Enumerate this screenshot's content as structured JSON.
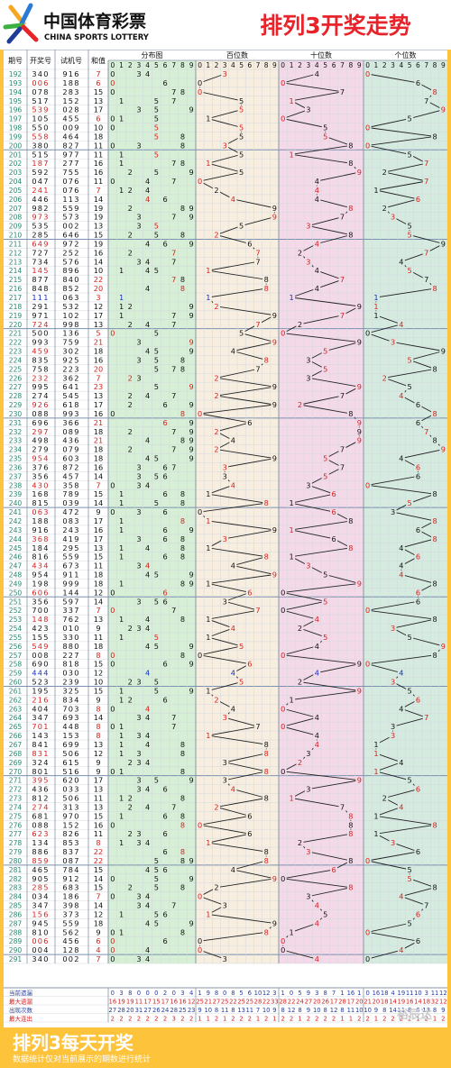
{
  "header": {
    "logo_cn": "中国体育彩票",
    "logo_en": "CHINA SPORTS LOTTERY",
    "title": "排列3开奖走势"
  },
  "columns": {
    "issue": "期号",
    "draw": "开奖号",
    "test": "试机号",
    "sum": "和值",
    "dist": "分布图",
    "hundreds": "百位数",
    "tens": "十位数",
    "units": "个位数"
  },
  "digits": [
    "0",
    "1",
    "2",
    "3",
    "4",
    "5",
    "6",
    "7",
    "8",
    "9"
  ],
  "rows": [
    [
      "192",
      "340",
      "916",
      "7"
    ],
    [
      "193",
      "006",
      "188",
      "6"
    ],
    [
      "194",
      "078",
      "283",
      "15"
    ],
    [
      "195",
      "517",
      "152",
      "13"
    ],
    [
      "196",
      "539",
      "028",
      "17"
    ],
    [
      "197",
      "105",
      "455",
      "6"
    ],
    [
      "198",
      "550",
      "009",
      "10"
    ],
    [
      "199",
      "558",
      "464",
      "18"
    ],
    [
      "200",
      "380",
      "827",
      "11"
    ],
    [
      "201",
      "515",
      "977",
      "11"
    ],
    [
      "202",
      "187",
      "277",
      "16"
    ],
    [
      "203",
      "592",
      "755",
      "16"
    ],
    [
      "204",
      "047",
      "076",
      "11"
    ],
    [
      "205",
      "241",
      "076",
      "7"
    ],
    [
      "206",
      "446",
      "113",
      "14"
    ],
    [
      "207",
      "982",
      "559",
      "19"
    ],
    [
      "208",
      "973",
      "573",
      "19"
    ],
    [
      "209",
      "535",
      "002",
      "13"
    ],
    [
      "210",
      "285",
      "646",
      "15"
    ],
    [
      "211",
      "649",
      "972",
      "19"
    ],
    [
      "212",
      "727",
      "252",
      "16"
    ],
    [
      "213",
      "734",
      "576",
      "14"
    ],
    [
      "214",
      "145",
      "896",
      "10"
    ],
    [
      "215",
      "877",
      "840",
      "22"
    ],
    [
      "216",
      "848",
      "852",
      "20"
    ],
    [
      "217",
      "111",
      "063",
      "3"
    ],
    [
      "218",
      "291",
      "532",
      "12"
    ],
    [
      "219",
      "971",
      "102",
      "17"
    ],
    [
      "220",
      "724",
      "998",
      "13"
    ],
    [
      "221",
      "500",
      "136",
      "5"
    ],
    [
      "222",
      "993",
      "759",
      "21"
    ],
    [
      "223",
      "459",
      "302",
      "18"
    ],
    [
      "224",
      "835",
      "925",
      "16"
    ],
    [
      "225",
      "758",
      "223",
      "20"
    ],
    [
      "226",
      "232",
      "362",
      "7"
    ],
    [
      "227",
      "995",
      "641",
      "23"
    ],
    [
      "228",
      "274",
      "545",
      "13"
    ],
    [
      "229",
      "926",
      "618",
      "17"
    ],
    [
      "230",
      "088",
      "993",
      "16"
    ],
    [
      "231",
      "696",
      "366",
      "21"
    ],
    [
      "232",
      "297",
      "089",
      "18"
    ],
    [
      "233",
      "498",
      "436",
      "21"
    ],
    [
      "234",
      "279",
      "079",
      "18"
    ],
    [
      "235",
      "954",
      "603",
      "18"
    ],
    [
      "236",
      "376",
      "872",
      "16"
    ],
    [
      "237",
      "356",
      "457",
      "14"
    ],
    [
      "238",
      "430",
      "358",
      "7"
    ],
    [
      "239",
      "168",
      "789",
      "15"
    ],
    [
      "240",
      "815",
      "039",
      "14"
    ],
    [
      "241",
      "063",
      "472",
      "9"
    ],
    [
      "242",
      "188",
      "083",
      "17"
    ],
    [
      "243",
      "916",
      "243",
      "16"
    ],
    [
      "244",
      "368",
      "419",
      "17"
    ],
    [
      "245",
      "184",
      "295",
      "13"
    ],
    [
      "246",
      "816",
      "559",
      "15"
    ],
    [
      "247",
      "434",
      "673",
      "11"
    ],
    [
      "248",
      "954",
      "911",
      "18"
    ],
    [
      "249",
      "198",
      "999",
      "18"
    ],
    [
      "250",
      "606",
      "144",
      "12"
    ],
    [
      "251",
      "356",
      "597",
      "14"
    ],
    [
      "252",
      "700",
      "337",
      "7"
    ],
    [
      "253",
      "148",
      "762",
      "13"
    ],
    [
      "254",
      "423",
      "010",
      "9"
    ],
    [
      "255",
      "155",
      "330",
      "11"
    ],
    [
      "256",
      "549",
      "880",
      "18"
    ],
    [
      "257",
      "008",
      "227",
      "8"
    ],
    [
      "258",
      "690",
      "818",
      "15"
    ],
    [
      "259",
      "444",
      "030",
      "12"
    ],
    [
      "260",
      "523",
      "239",
      "10"
    ],
    [
      "261",
      "195",
      "325",
      "15"
    ],
    [
      "262",
      "216",
      "834",
      "9"
    ],
    [
      "263",
      "404",
      "703",
      "8"
    ],
    [
      "264",
      "347",
      "693",
      "14"
    ],
    [
      "265",
      "701",
      "448",
      "8"
    ],
    [
      "266",
      "143",
      "153",
      "8"
    ],
    [
      "267",
      "841",
      "699",
      "13"
    ],
    [
      "268",
      "831",
      "506",
      "12"
    ],
    [
      "269",
      "324",
      "615",
      "9"
    ],
    [
      "270",
      "801",
      "516",
      "9"
    ],
    [
      "271",
      "395",
      "620",
      "17"
    ],
    [
      "272",
      "436",
      "033",
      "13"
    ],
    [
      "273",
      "812",
      "506",
      "11"
    ],
    [
      "274",
      "274",
      "313",
      "13"
    ],
    [
      "275",
      "681",
      "970",
      "15"
    ],
    [
      "276",
      "088",
      "152",
      "16"
    ],
    [
      "277",
      "623",
      "826",
      "11"
    ],
    [
      "278",
      "134",
      "853",
      "8"
    ],
    [
      "279",
      "886",
      "837",
      "22"
    ],
    [
      "280",
      "859",
      "087",
      "22"
    ],
    [
      "281",
      "465",
      "784",
      "15"
    ],
    [
      "282",
      "905",
      "912",
      "14"
    ],
    [
      "283",
      "285",
      "683",
      "15"
    ],
    [
      "284",
      "034",
      "186",
      "7"
    ],
    [
      "285",
      "347",
      "398",
      "14"
    ],
    [
      "286",
      "156",
      "373",
      "12"
    ],
    [
      "287",
      "945",
      "559",
      "18"
    ],
    [
      "288",
      "810",
      "562",
      "9"
    ],
    [
      "289",
      "006",
      "456",
      "6"
    ],
    [
      "290",
      "004",
      "128",
      "4"
    ],
    [
      "291",
      "340",
      "002",
      "7"
    ]
  ],
  "stats": {
    "labels": [
      "当前遗漏",
      "最大遗漏",
      "出现次数",
      "最大连出"
    ],
    "dist": [
      [
        "0",
        "3",
        "8",
        "0",
        "0",
        "0",
        "2",
        "0",
        "3",
        "4"
      ],
      [
        "16",
        "19",
        "19",
        "11",
        "17",
        "15",
        "17",
        "16",
        "16",
        "12"
      ],
      [
        "27",
        "28",
        "20",
        "31",
        "27",
        "26",
        "24",
        "28",
        "25",
        "23"
      ],
      [
        "2",
        "2",
        "2",
        "2",
        "2",
        "2",
        "2",
        "3",
        "2",
        "2"
      ]
    ],
    "hundreds": [
      [
        "1",
        "9",
        "8",
        "0",
        "8",
        "5",
        "6",
        "10",
        "12",
        "3"
      ],
      [
        "25",
        "21",
        "27",
        "25",
        "22",
        "25",
        "25",
        "28",
        "22",
        "33"
      ],
      [
        "9",
        "10",
        "8",
        "11",
        "8",
        "13",
        "11",
        "7",
        "10",
        "9"
      ],
      [
        "1",
        "1",
        "2",
        "1",
        "2",
        "2",
        "2",
        "1",
        "2",
        "1"
      ]
    ],
    "tens": [
      [
        "1",
        "0",
        "5",
        "9",
        "3",
        "8",
        "7",
        "1",
        "16",
        "1"
      ],
      [
        "28",
        "22",
        "24",
        "27",
        "20",
        "26",
        "17",
        "28",
        "17",
        "20"
      ],
      [
        "8",
        "12",
        "8",
        "9",
        "10",
        "8",
        "12",
        "8",
        "11",
        "10"
      ],
      [
        "2",
        "2",
        "1",
        "2",
        "2",
        "2",
        "2",
        "1",
        "1",
        "2"
      ]
    ],
    "units": [
      [
        "0",
        "16",
        "18",
        "4",
        "19",
        "11",
        "10",
        "3",
        "11",
        "12"
      ],
      [
        "21",
        "20",
        "18",
        "14",
        "19",
        "16",
        "14",
        "18",
        "32",
        "12"
      ],
      [
        "10",
        "9",
        "8",
        "14",
        "11",
        "8",
        "6",
        "13",
        "8",
        "9"
      ],
      [
        "2",
        "1",
        "2",
        "2",
        "2",
        "2",
        "1",
        "2",
        "1",
        "2"
      ]
    ]
  },
  "footer": {
    "title": "排列3每天开奖",
    "note": "数据统计仅对当前展示的期数进行统计",
    "watermark": "裕辰达"
  },
  "colors": {
    "band_dist": "#d6efd6",
    "band_hundreds": "#f7eee0",
    "band_tens": "#f4d9e8",
    "band_units": "#d5ebe0",
    "brand_red": "#e8232a",
    "line": "#222222",
    "num_red": "#d62020",
    "num_blue": "#1530c8",
    "issue_teal": "#2a8a72"
  },
  "chart_data": {
    "type": "line",
    "x_from": 192,
    "x_to": 291,
    "x_step": 1,
    "series": [
      {
        "name": "百位数",
        "values": [
          3,
          0,
          0,
          5,
          5,
          1,
          5,
          5,
          3,
          5,
          1,
          5,
          0,
          2,
          4,
          9,
          9,
          5,
          2,
          6,
          7,
          7,
          1,
          8,
          8,
          1,
          2,
          9,
          7,
          5,
          9,
          4,
          8,
          7,
          2,
          9,
          2,
          9,
          0,
          6,
          2,
          4,
          2,
          9,
          3,
          3,
          4,
          1,
          8,
          0,
          1,
          9,
          3,
          1,
          8,
          4,
          9,
          1,
          6,
          3,
          7,
          1,
          4,
          1,
          5,
          0,
          6,
          4,
          5,
          1,
          2,
          4,
          3,
          7,
          1,
          8,
          8,
          3,
          8,
          3,
          4,
          8,
          2,
          6,
          0,
          6,
          1,
          8,
          8,
          4,
          9,
          2,
          0,
          3,
          1,
          9,
          8,
          0,
          0,
          3
        ]
      },
      {
        "name": "十位数",
        "values": [
          4,
          0,
          7,
          1,
          3,
          0,
          5,
          5,
          8,
          1,
          8,
          9,
          4,
          4,
          4,
          8,
          7,
          3,
          8,
          4,
          2,
          3,
          4,
          7,
          4,
          1,
          9,
          7,
          2,
          0,
          9,
          5,
          3,
          5,
          3,
          9,
          7,
          2,
          8,
          9,
          9,
          9,
          7,
          5,
          7,
          5,
          3,
          6,
          1,
          6,
          8,
          1,
          6,
          8,
          1,
          3,
          5,
          9,
          0,
          5,
          0,
          4,
          2,
          5,
          4,
          0,
          9,
          4,
          2,
          9,
          1,
          0,
          4,
          0,
          4,
          4,
          3,
          2,
          0,
          9,
          3,
          1,
          7,
          8,
          8,
          8,
          2,
          3,
          8,
          6,
          0,
          8,
          3,
          4,
          5,
          4,
          1,
          0,
          0,
          4
        ]
      },
      {
        "name": "个位数",
        "values": [
          0,
          6,
          8,
          7,
          9,
          5,
          0,
          8,
          0,
          5,
          7,
          2,
          7,
          1,
          6,
          2,
          3,
          5,
          5,
          9,
          7,
          4,
          5,
          7,
          8,
          1,
          1,
          1,
          4,
          0,
          3,
          9,
          5,
          8,
          2,
          5,
          4,
          6,
          8,
          6,
          7,
          8,
          9,
          4,
          6,
          6,
          0,
          8,
          5,
          3,
          8,
          6,
          8,
          4,
          6,
          4,
          4,
          8,
          6,
          6,
          0,
          8,
          3,
          5,
          9,
          8,
          0,
          4,
          3,
          5,
          6,
          4,
          7,
          3,
          3,
          1,
          1,
          4,
          1,
          5,
          6,
          2,
          4,
          1,
          8,
          1,
          3,
          6,
          0,
          5,
          5,
          8,
          4,
          7,
          6,
          5,
          0,
          6,
          4,
          0
        ]
      }
    ]
  }
}
